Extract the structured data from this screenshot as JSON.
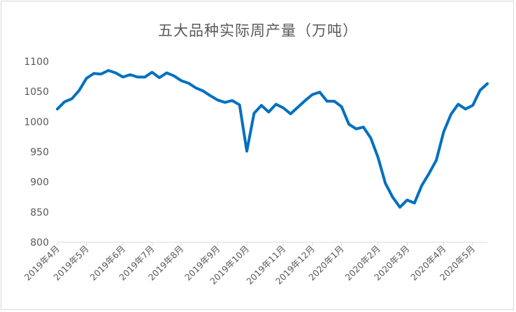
{
  "chart_data": {
    "type": "line",
    "title": "五大品种实际周产量（万吨）",
    "xlabel": "",
    "ylabel": "",
    "ylim": [
      800,
      1100
    ],
    "yticks": [
      800,
      850,
      900,
      950,
      1000,
      1050,
      1100
    ],
    "grid": false,
    "line_color": "#0070c0",
    "x_tick_labels": [
      "2019年4月",
      "2019年5月",
      "2019年6月",
      "2019年7月",
      "2019年8月",
      "2019年9月",
      "2019年10月",
      "2019年11月",
      "2019年12月",
      "2020年1月",
      "2020年2月",
      "2020年3月",
      "2020年4月",
      "2020年5月"
    ],
    "x_tick_index": [
      0,
      4,
      9,
      13,
      17,
      22,
      26,
      31,
      35,
      39,
      44,
      48,
      53,
      57
    ],
    "series": [
      {
        "values": [
          1021,
          1033,
          1038,
          1052,
          1072,
          1080,
          1079,
          1085,
          1081,
          1074,
          1078,
          1074,
          1074,
          1082,
          1073,
          1081,
          1076,
          1068,
          1064,
          1056,
          1051,
          1043,
          1036,
          1032,
          1035,
          1028,
          951,
          1014,
          1027,
          1016,
          1029,
          1023,
          1013,
          1024,
          1035,
          1045,
          1049,
          1034,
          1034,
          1025,
          996,
          988,
          991,
          973,
          941,
          898,
          875,
          858,
          870,
          865,
          894,
          914,
          936,
          983,
          1012,
          1029,
          1021,
          1027,
          1052,
          1063
        ]
      }
    ]
  }
}
